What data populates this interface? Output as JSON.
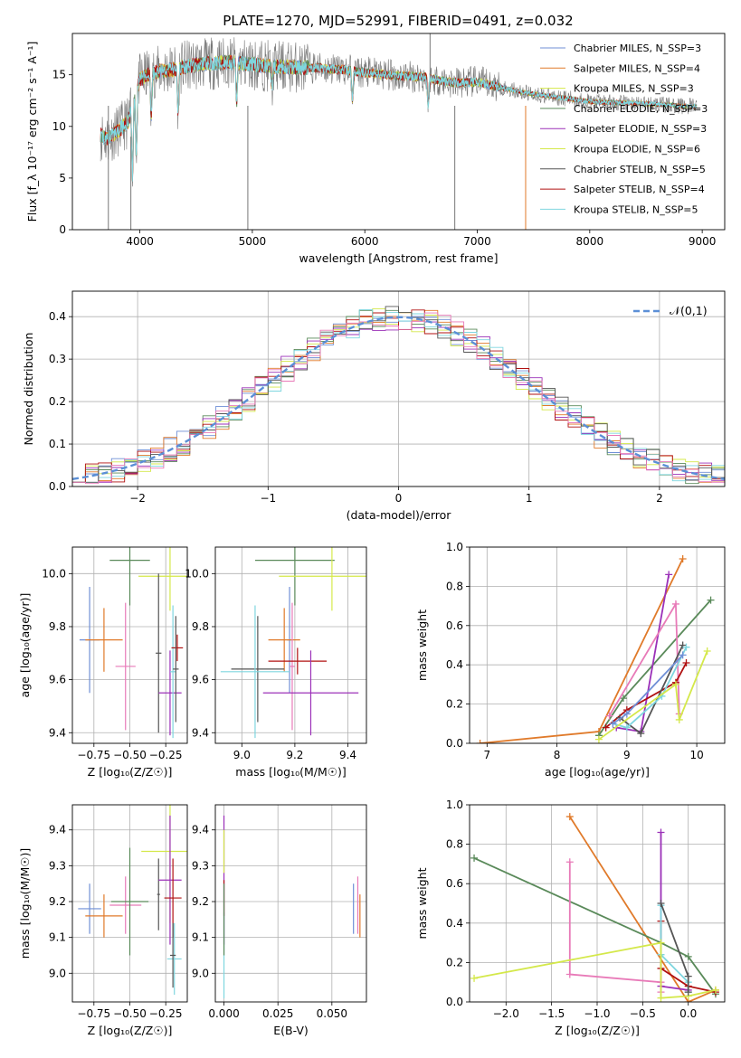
{
  "figure_title": "PLATE=1270, MJD=52991, FIBERID=0491, z=0.032",
  "colors": {
    "Chabrier MILES": "#6f8fd6",
    "Salpeter MILES": "#e07a2a",
    "Kroupa MILES": "#5a8a5a",
    "Chabrier ELODIE": "#5a8a5a",
    "Salpeter ELODIE": "#9b30b8",
    "Kroupa ELODIE": "#d4e84a",
    "Chabrier STELIB": "#555555",
    "Salpeter STELIB": "#b01010",
    "Kroupa STELIB": "#7fd6df",
    "pink": "#e87ab8",
    "normal": "#5b8fd6"
  },
  "chart_data": [
    {
      "id": "spectrum",
      "type": "line",
      "title": "PLATE=1270, MJD=52991, FIBERID=0491, z=0.032",
      "xlabel": "wavelength [Angstrom, rest frame]",
      "ylabel": "Flux [f_λ 10⁻¹⁷ erg cm⁻² s⁻¹ A⁻¹]",
      "xlim": [
        3400,
        9200
      ],
      "ylim": [
        0,
        19
      ],
      "xticks": [
        "4000",
        "5000",
        "6000",
        "7000",
        "8000",
        "9000"
      ],
      "yticks": [
        "0",
        "5",
        "10",
        "15"
      ],
      "legend": [
        "Chabrier MILES, N_SSP=3",
        "Salpeter MILES, N_SSP=4",
        "Kroupa MILES, N_SSP=3",
        "Chabrier ELODIE, N_SSP=3",
        "Salpeter ELODIE, N_SSP=3",
        "Kroupa ELODIE, N_SSP=6",
        "Chabrier STELIB, N_SSP=5",
        "Salpeter STELIB, N_SSP=4",
        "Kroupa STELIB, N_SSP=5"
      ],
      "legend_position": "top-right",
      "continuum": {
        "x": [
          3650,
          3700,
          3800,
          3900,
          4000,
          4100,
          4300,
          4500,
          4800,
          5000,
          5200,
          5500,
          5800,
          6000,
          6300,
          6500,
          6600,
          6800,
          7000,
          7200,
          7400,
          7600,
          7800,
          8000,
          8200,
          8500,
          8800,
          8950
        ],
        "y": [
          9.2,
          8.8,
          9.5,
          10.5,
          14.5,
          15.2,
          15.5,
          16.0,
          16.2,
          16.0,
          15.8,
          15.7,
          15.5,
          15.2,
          14.9,
          14.8,
          14.6,
          14.2,
          14.3,
          13.8,
          13.3,
          13.0,
          12.7,
          12.4,
          12.3,
          12.2,
          12.0,
          11.9
        ]
      }
    },
    {
      "id": "residuals",
      "type": "histogram",
      "xlabel": "(data-model)/error",
      "ylabel": "Normed distribution",
      "xlim": [
        -2.5,
        2.5
      ],
      "ylim": [
        0,
        0.46
      ],
      "xticks": [
        "−2",
        "−1",
        "0",
        "1",
        "2"
      ],
      "yticks": [
        "0.0",
        "0.1",
        "0.2",
        "0.3",
        "0.4"
      ],
      "legend": [
        "𝒩(0,1)"
      ],
      "legend_position": "top-right",
      "bin_width": 0.1,
      "bin_start": -2.5
    },
    {
      "id": "age-vs-Z",
      "type": "scatter",
      "xlabel": "Z [log₁₀(Z/Z☉)]",
      "ylabel": "age  [log₁₀(age/yr)]",
      "xlim": [
        -0.9,
        -0.1
      ],
      "ylim": [
        9.36,
        10.1
      ],
      "xticks": [
        "−0.75",
        "−0.50",
        "−0.25"
      ],
      "yticks": [
        "9.4",
        "9.6",
        "9.8",
        "10.0"
      ],
      "points": [
        {
          "c": "Chabrier MILES",
          "x": -0.78,
          "xe": 0.07,
          "y": 9.75,
          "ye": 0.2
        },
        {
          "c": "Salpeter MILES",
          "x": -0.68,
          "xe": 0.13,
          "y": 9.75,
          "ye": 0.12
        },
        {
          "c": "pink",
          "x": -0.53,
          "xe": 0.07,
          "y": 9.65,
          "ye": 0.24
        },
        {
          "c": "Chabrier ELODIE",
          "x": -0.5,
          "xe": 0.14,
          "y": 10.05,
          "ye": 0.17
        },
        {
          "c": "Kroupa ELODIE",
          "x": -0.22,
          "xe": 0.22,
          "y": 9.99,
          "ye": 0.13
        },
        {
          "c": "Chabrier STELIB",
          "x": -0.3,
          "xe": 0.02,
          "y": 9.7,
          "ye": 0.3
        },
        {
          "c": "Salpeter ELODIE",
          "x": -0.22,
          "xe": 0.08,
          "y": 9.55,
          "ye": 0.16
        },
        {
          "c": "Kroupa STELIB",
          "x": -0.2,
          "xe": 0.02,
          "y": 9.63,
          "ye": 0.25
        },
        {
          "c": "Salpeter STELIB",
          "x": -0.17,
          "xe": 0.04,
          "y": 9.72,
          "ye": 0.05
        },
        {
          "c": "Chabrier STELIB",
          "x": -0.18,
          "xe": 0.02,
          "y": 9.64,
          "ye": 0.2
        }
      ]
    },
    {
      "id": "age-vs-mass",
      "type": "scatter",
      "xlabel": "mass [log₁₀(M/M☉)]",
      "ylabel": "",
      "xlim": [
        8.9,
        9.47
      ],
      "ylim": [
        9.36,
        10.1
      ],
      "xticks": [
        "9.0",
        "9.2",
        "9.4"
      ],
      "yticks": [
        "9.4",
        "9.6",
        "9.8",
        "10.0"
      ],
      "points": [
        {
          "c": "Chabrier MILES",
          "x": 9.18,
          "xe": 0.01,
          "y": 9.75,
          "ye": 0.2
        },
        {
          "c": "Salpeter MILES",
          "x": 9.16,
          "xe": 0.06,
          "y": 9.75,
          "ye": 0.12
        },
        {
          "c": "pink",
          "x": 9.19,
          "xe": 0.01,
          "y": 9.65,
          "ye": 0.24
        },
        {
          "c": "Chabrier ELODIE",
          "x": 9.2,
          "xe": 0.15,
          "y": 10.05,
          "ye": 0.17
        },
        {
          "c": "Kroupa ELODIE",
          "x": 9.34,
          "xe": 0.2,
          "y": 9.99,
          "ye": 0.13
        },
        {
          "c": "Chabrier STELIB",
          "x": 9.06,
          "xe": 0.1,
          "y": 9.64,
          "ye": 0.2
        },
        {
          "c": "Kroupa STELIB",
          "x": 9.05,
          "xe": 0.13,
          "y": 9.63,
          "ye": 0.25
        },
        {
          "c": "Salpeter STELIB",
          "x": 9.21,
          "xe": 0.11,
          "y": 9.67,
          "ye": 0.05
        },
        {
          "c": "Salpeter ELODIE",
          "x": 9.26,
          "xe": 0.18,
          "y": 9.55,
          "ye": 0.16
        }
      ]
    },
    {
      "id": "weight-vs-age",
      "type": "line",
      "xlabel": "age  [log₁₀(age/yr)]",
      "ylabel": "mass weight",
      "xlim": [
        6.75,
        10.4
      ],
      "ylim": [
        0,
        1.0
      ],
      "xticks": [
        "7",
        "8",
        "9",
        "10"
      ],
      "yticks": [
        "0.0",
        "0.2",
        "0.4",
        "0.6",
        "0.8",
        "1.0"
      ],
      "series": [
        {
          "c": "Salpeter MILES",
          "x": [
            6.9,
            8.6,
            9.8
          ],
          "y": [
            0.0,
            0.06,
            0.94
          ]
        },
        {
          "c": "Chabrier ELODIE",
          "x": [
            8.6,
            8.95,
            10.2
          ],
          "y": [
            0.04,
            0.23,
            0.73
          ]
        },
        {
          "c": "Salpeter ELODIE",
          "x": [
            8.85,
            9.2,
            9.6
          ],
          "y": [
            0.08,
            0.06,
            0.86
          ]
        },
        {
          "c": "pink",
          "x": [
            8.75,
            9.7,
            9.75
          ],
          "y": [
            0.14,
            0.71,
            0.15
          ]
        },
        {
          "c": "Salpeter STELIB",
          "x": [
            8.7,
            9.0,
            9.7,
            9.85
          ],
          "y": [
            0.08,
            0.17,
            0.31,
            0.41
          ]
        },
        {
          "c": "Chabrier STELIB",
          "x": [
            8.9,
            9.2,
            9.8
          ],
          "y": [
            0.13,
            0.05,
            0.5
          ]
        },
        {
          "c": "Kroupa STELIB",
          "x": [
            8.8,
            9.0,
            9.5,
            9.85
          ],
          "y": [
            0.1,
            0.08,
            0.24,
            0.49
          ]
        },
        {
          "c": "Kroupa ELODIE",
          "x": [
            8.6,
            9.7,
            9.75,
            10.15
          ],
          "y": [
            0.02,
            0.3,
            0.12,
            0.47
          ]
        },
        {
          "c": "Chabrier MILES",
          "x": [
            8.8,
            9.0,
            9.8
          ],
          "y": [
            0.1,
            0.15,
            0.45
          ]
        }
      ]
    },
    {
      "id": "mass-vs-Z",
      "type": "scatter",
      "xlabel": "Z [log₁₀(Z/Z☉)]",
      "ylabel": "mass [log₁₀(M/M☉)]",
      "xlim": [
        -0.9,
        -0.1
      ],
      "ylim": [
        8.92,
        9.47
      ],
      "xticks": [
        "−0.75",
        "−0.50",
        "−0.25"
      ],
      "yticks": [
        "9.0",
        "9.1",
        "9.2",
        "9.3",
        "9.4"
      ],
      "points": [
        {
          "c": "Chabrier MILES",
          "x": -0.78,
          "xe": 0.08,
          "y": 9.18,
          "ye": 0.07
        },
        {
          "c": "Salpeter MILES",
          "x": -0.68,
          "xe": 0.13,
          "y": 9.16,
          "ye": 0.06
        },
        {
          "c": "pink",
          "x": -0.53,
          "xe": 0.11,
          "y": 9.19,
          "ye": 0.08
        },
        {
          "c": "Chabrier ELODIE",
          "x": -0.5,
          "xe": 0.13,
          "y": 9.2,
          "ye": 0.15
        },
        {
          "c": "Kroupa ELODIE",
          "x": -0.22,
          "xe": 0.2,
          "y": 9.34,
          "ye": 0.2
        },
        {
          "c": "Chabrier STELIB",
          "x": -0.3,
          "xe": 0.01,
          "y": 9.22,
          "ye": 0.1
        },
        {
          "c": "Salpeter ELODIE",
          "x": -0.22,
          "xe": 0.08,
          "y": 9.26,
          "ye": 0.18
        },
        {
          "c": "Salpeter STELIB",
          "x": -0.2,
          "xe": 0.06,
          "y": 9.21,
          "ye": 0.11
        },
        {
          "c": "Kroupa STELIB",
          "x": -0.19,
          "xe": 0.05,
          "y": 9.04,
          "ye": 0.1
        },
        {
          "c": "Chabrier STELIB",
          "x": -0.2,
          "xe": 0.02,
          "y": 9.05,
          "ye": 0.09
        }
      ]
    },
    {
      "id": "mass-vs-EBV",
      "type": "scatter",
      "xlabel": "E(B-V)",
      "ylabel": "",
      "xlim": [
        -0.004,
        0.066
      ],
      "ylim": [
        8.92,
        9.47
      ],
      "xticks": [
        "0.000",
        "0.025",
        "0.050"
      ],
      "yticks": [
        "9.0",
        "9.1",
        "9.2",
        "9.3",
        "9.4"
      ],
      "points": [
        {
          "c": "Kroupa STELIB",
          "x": 0.0,
          "xe": 0.0,
          "y": 9.05,
          "ye": 0.12
        },
        {
          "c": "Salpeter ELODIE",
          "x": 0.0,
          "xe": 0.0,
          "y": 9.26,
          "ye": 0.18
        },
        {
          "c": "Kroupa ELODIE",
          "x": 0.0,
          "xe": 0.0,
          "y": 9.34,
          "ye": 0.06
        },
        {
          "c": "Salpeter STELIB",
          "x": 0.0,
          "xe": 0.0,
          "y": 9.21,
          "ye": 0.05
        },
        {
          "c": "Chabrier ELODIE",
          "x": 0.0,
          "xe": 0.0,
          "y": 9.15,
          "ye": 0.1
        },
        {
          "c": "Chabrier MILES",
          "x": 0.06,
          "xe": 0.0,
          "y": 9.18,
          "ye": 0.07
        },
        {
          "c": "Salpeter MILES",
          "x": 0.063,
          "xe": 0.0,
          "y": 9.16,
          "ye": 0.06
        },
        {
          "c": "pink",
          "x": 0.062,
          "xe": 0.0,
          "y": 9.19,
          "ye": 0.08
        }
      ]
    },
    {
      "id": "weight-vs-Z",
      "type": "line",
      "xlabel": "Z [log₁₀(Z/Z☉)]",
      "ylabel": "mass weight",
      "xlim": [
        -2.4,
        0.4
      ],
      "ylim": [
        0,
        1.0
      ],
      "xticks": [
        "−2.0",
        "−1.5",
        "−1.0",
        "−0.5",
        "0.0"
      ],
      "yticks": [
        "0.0",
        "0.2",
        "0.4",
        "0.6",
        "0.8",
        "1.0"
      ],
      "series": [
        {
          "c": "Salpeter MILES",
          "x": [
            -1.3,
            0.0,
            0.3
          ],
          "y": [
            0.94,
            0.0,
            0.06
          ]
        },
        {
          "c": "Chabrier ELODIE",
          "x": [
            -2.35,
            -0.3,
            0.0,
            0.3
          ],
          "y": [
            0.73,
            0.3,
            0.23,
            0.04
          ]
        },
        {
          "c": "pink",
          "x": [
            -1.3,
            -1.3,
            -0.3,
            -0.3
          ],
          "y": [
            0.71,
            0.14,
            0.1,
            0.05
          ]
        },
        {
          "c": "Salpeter ELODIE",
          "x": [
            -0.3,
            -0.3,
            0.0
          ],
          "y": [
            0.86,
            0.08,
            0.06
          ]
        },
        {
          "c": "Salpeter STELIB",
          "x": [
            -0.3,
            -0.3,
            0.0,
            0.3
          ],
          "y": [
            0.41,
            0.17,
            0.08,
            0.05
          ]
        },
        {
          "c": "Kroupa STELIB",
          "x": [
            -0.3,
            -0.3,
            0.0,
            0.0
          ],
          "y": [
            0.49,
            0.24,
            0.1,
            0.05
          ]
        },
        {
          "c": "Kroupa ELODIE",
          "x": [
            -2.35,
            -0.3,
            -0.3,
            0.0,
            0.3
          ],
          "y": [
            0.12,
            0.3,
            0.02,
            0.03,
            0.06
          ]
        },
        {
          "c": "Chabrier STELIB",
          "x": [
            -0.3,
            0.0,
            0.0
          ],
          "y": [
            0.5,
            0.13,
            0.05
          ]
        }
      ]
    }
  ]
}
